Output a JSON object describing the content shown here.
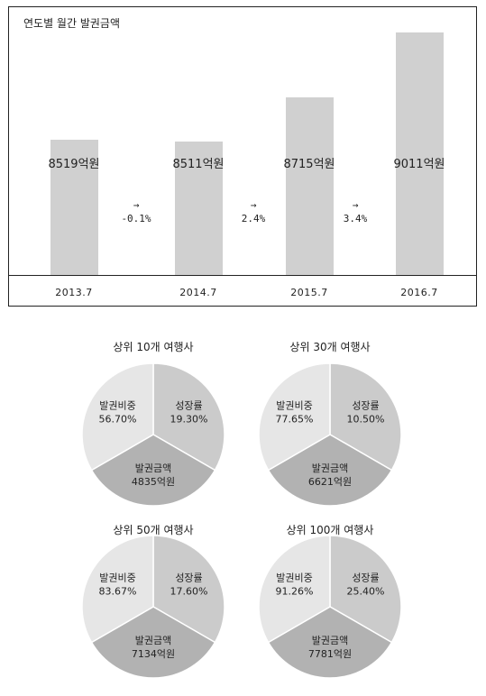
{
  "chart_data": [
    {
      "type": "bar",
      "title": "연도별 월간 발권금액",
      "categories": [
        "2013.7",
        "2014.7",
        "2015.7",
        "2016.7"
      ],
      "values": [
        8519,
        8511,
        8715,
        9011
      ],
      "value_labels": [
        "8519억원",
        "8511억원",
        "8715억원",
        "9011억원"
      ],
      "growth_labels": [
        "→\n-0.1%",
        "→\n2.4%",
        "→\n3.4%"
      ],
      "bar_color": "#d0d0d0"
    },
    {
      "type": "pie",
      "title": "상위 10개 여행사",
      "slice_labels": [
        "성장률\n19.30%",
        "발권금액\n4835억원",
        "발권비중\n56.70%"
      ]
    },
    {
      "type": "pie",
      "title": "상위 30개 여행사",
      "slice_labels": [
        "성장률\n10.50%",
        "발권금액\n6621억원",
        "발권비중\n77.65%"
      ]
    },
    {
      "type": "pie",
      "title": "상위 50개 여행사",
      "slice_labels": [
        "성장률\n17.60%",
        "발권금액\n7134억원",
        "발권비중\n83.67%"
      ]
    },
    {
      "type": "pie",
      "title": "상위 100개 여행사",
      "slice_labels": [
        "성장률\n25.40%",
        "발권금액\n7781억원",
        "발권비중\n91.26%"
      ]
    }
  ],
  "pie_colors": [
    "#cbcbcb",
    "#b2b2b2",
    "#e6e6e6"
  ]
}
